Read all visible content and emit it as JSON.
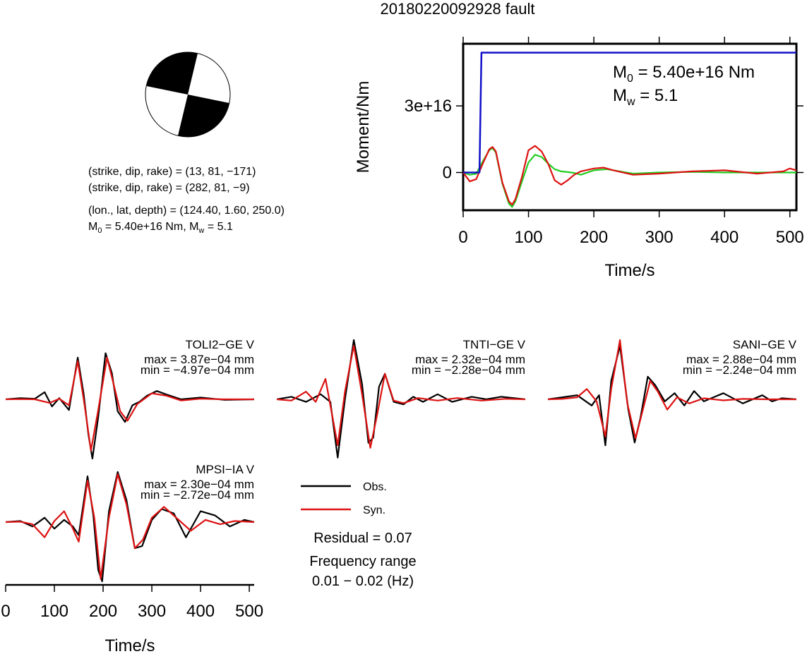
{
  "title": "20180220092928 fault",
  "mechanism": {
    "np1": "(strike, dip, rake) = (13, 81, −171)",
    "np2": "(strike, dip, rake) = (282, 81, −9)",
    "location": "(lon., lat, depth) = (124.40, 1.60, 250.0)",
    "m0_prefix": "M",
    "m0_sub": "0",
    "m0_value": " = 5.40e+16 Nm, M",
    "mw_sub": "w",
    "mw_value": " = 5.1"
  },
  "moment_box": {
    "m0_label": "M",
    "m0_sub": "0",
    "m0_text": " = 5.40e+16 Nm",
    "mw_label": "M",
    "mw_sub": "w",
    "mw_text": " = 5.1"
  },
  "legend": {
    "obs": "Obs.",
    "syn": "Syn.",
    "residual": "Residual = 0.07",
    "freq_title": "Frequency range",
    "freq_value": "0.01 − 0.02 (Hz)"
  },
  "colors": {
    "obs": "#000000",
    "syn": "#dd1111",
    "cumulative": "#1010c8",
    "rate_green": "#22cc22",
    "rate_red": "#dd1111"
  },
  "chart_data": [
    {
      "type": "line",
      "title": "",
      "xlabel": "Time/s",
      "ylabel": "Moment/Nm",
      "xlim": [
        0,
        510
      ],
      "ylim": [
        -1.7e+16,
        5.8e+16
      ],
      "xticks": [
        0,
        100,
        200,
        300,
        400,
        500
      ],
      "xtick_labels": [
        "0",
        "100",
        "200",
        "300",
        "400",
        "500"
      ],
      "yticks": [
        0,
        3e+16
      ],
      "ytick_labels": [
        "0",
        "3e+16"
      ],
      "series": [
        {
          "key": "cumulative",
          "x": [
            0,
            25,
            28,
            510
          ],
          "y": [
            0,
            0,
            5.4e+16,
            5.4e+16
          ]
        },
        {
          "key": "rate_green",
          "x": [
            0,
            10,
            20,
            30,
            40,
            45,
            50,
            60,
            70,
            75,
            80,
            90,
            100,
            110,
            120,
            130,
            140,
            150,
            160,
            170,
            180,
            200,
            220,
            240,
            260,
            300,
            350,
            400,
            450,
            500,
            510
          ],
          "y": [
            0,
            -1000000000000000.0,
            -600000000000000.0,
            5000000000000000.0,
            1e+16,
            1.1e+16,
            9000000000000000.0,
            -5000000000000000.0,
            -1.4e+16,
            -1.55e+16,
            -1.3e+16,
            -4000000000000000.0,
            4500000000000000.0,
            8000000000000000.0,
            7000000000000000.0,
            4000000000000000.0,
            1500000000000000.0,
            500000000000000.0,
            200000000000000.0,
            -200000000000000.0,
            -1000000000000000.0,
            1000000000000000.0,
            1500000000000000.0,
            500000000000000.0,
            -500000000000000.0,
            0.0,
            300000000000000.0,
            0.0,
            0.0,
            0.0,
            0.0
          ]
        },
        {
          "key": "rate_red",
          "x": [
            0,
            10,
            20,
            30,
            40,
            45,
            50,
            60,
            70,
            75,
            80,
            90,
            100,
            110,
            120,
            130,
            140,
            150,
            160,
            170,
            180,
            200,
            215,
            230,
            260,
            300,
            350,
            400,
            450,
            490,
            500,
            510
          ],
          "y": [
            0,
            -4000000000000000.0,
            -3000000000000000.0,
            4000000000000000.0,
            1.05e+16,
            1.15e+16,
            9500000000000000.0,
            -4500000000000000.0,
            -1.3e+16,
            -1.45e+16,
            -1.2e+16,
            -2000000000000000.0,
            1e+16,
            1.2e+16,
            9500000000000000.0,
            4000000000000000.0,
            -3500000000000000.0,
            -5500000000000000.0,
            -3500000000000000.0,
            -1000000000000000.0,
            500000000000000.0,
            1800000000000000.0,
            2200000000000000.0,
            1000000000000000.0,
            -1000000000000000.0,
            -500000000000000.0,
            500000000000000.0,
            1000000000000000.0,
            -500000000000000.0,
            500000000000000.0,
            1800000000000000.0,
            1000000000000000.0
          ]
        }
      ]
    },
    {
      "type": "line",
      "station": "TOLI2−GE V",
      "max": "max = 3.87e−04 mm",
      "min": "min = −4.97e−04 mm",
      "xlim": [
        0,
        510
      ],
      "ylim": [
        -0.000497,
        0.000387
      ],
      "series": [
        {
          "name": "Obs.",
          "x": [
            0,
            30,
            60,
            80,
            95,
            110,
            130,
            148,
            160,
            170,
            178,
            190,
            205,
            218,
            230,
            245,
            260,
            275,
            290,
            310,
            330,
            360,
            400,
            450,
            510
          ],
          "y": [
            0,
            1e-05,
            5e-06,
            6e-05,
            -6e-05,
            1e-05,
            -9e-05,
            0.00035,
            5e-05,
            -0.0003,
            -0.000497,
            -0.00015,
            0.000387,
            0.00022,
            -0.0001,
            -0.00019,
            -5e-05,
            -2e-05,
            3e-05,
            7e-05,
            4e-05,
            0.0,
            1.5e-05,
            -5e-06,
            0.0
          ]
        },
        {
          "name": "Syn.",
          "x": [
            0,
            30,
            60,
            90,
            110,
            130,
            148,
            162,
            175,
            190,
            208,
            222,
            235,
            250,
            270,
            300,
            330,
            360,
            400,
            450,
            510
          ],
          "y": [
            0,
            2e-06,
            0.0,
            -3e-05,
            5e-06,
            -5e-05,
            0.00032,
            -5e-05,
            -0.00043,
            -9e-05,
            0.00035,
            0.00012,
            -0.0001,
            -0.00018,
            -4e-05,
            5e-05,
            3e-05,
            -1e-05,
            5e-06,
            0.0,
            0.0
          ]
        }
      ]
    },
    {
      "type": "line",
      "station": "TNTI−GE V",
      "max": "max = 2.32e−04 mm",
      "min": "min = −2.28e−04 mm",
      "xlim": [
        0,
        510
      ],
      "ylim": [
        -0.000228,
        0.000232
      ],
      "series": [
        {
          "name": "Obs.",
          "x": [
            0,
            30,
            60,
            90,
            110,
            125,
            140,
            158,
            175,
            188,
            198,
            210,
            222,
            240,
            260,
            280,
            300,
            330,
            360,
            400,
            430,
            460,
            510
          ],
          "y": [
            0,
            1e-05,
            -1e-05,
            2e-05,
            -1e-05,
            -0.000228,
            0.0,
            0.000232,
            6e-05,
            -0.00017,
            -0.00015,
            5e-05,
            0.0001,
            -1e-05,
            -2e-05,
            1e-05,
            -1e-05,
            2e-05,
            -1e-05,
            1e-05,
            0.0,
            1e-05,
            0.0
          ]
        },
        {
          "name": "Syn.",
          "x": [
            0,
            30,
            60,
            80,
            100,
            125,
            140,
            158,
            175,
            192,
            205,
            222,
            240,
            260,
            290,
            330,
            370,
            420,
            470,
            510
          ],
          "y": [
            0,
            -5e-06,
            3e-05,
            -1e-05,
            8e-05,
            -0.00018,
            3e-05,
            0.00021,
            2e-05,
            -0.00019,
            -7e-05,
            0.0001,
            -5e-06,
            -1.5e-05,
            5e-06,
            -5e-06,
            5e-06,
            -5e-06,
            2e-06,
            0.0
          ]
        }
      ]
    },
    {
      "type": "line",
      "station": "SANI−GE V",
      "max": "max = 2.88e−04 mm",
      "min": "min = −2.24e−04 mm",
      "xlim": [
        0,
        510
      ],
      "ylim": [
        -0.000224,
        0.000288
      ],
      "series": [
        {
          "name": "Obs.",
          "x": [
            0,
            30,
            60,
            90,
            105,
            118,
            130,
            148,
            165,
            178,
            190,
            205,
            220,
            240,
            260,
            280,
            300,
            320,
            360,
            400,
            440,
            460,
            480,
            510
          ],
          "y": [
            0,
            1e-05,
            2e-05,
            -3e-05,
            2e-05,
            -0.000224,
            9e-05,
            0.00026,
            -5e-05,
            -0.00021,
            -9e-05,
            0.00011,
            7e-05,
            -1e-05,
            3e-05,
            -3e-05,
            4e-05,
            -1e-05,
            3e-05,
            -2e-05,
            2e-05,
            -1e-05,
            5e-06,
            0.0
          ]
        },
        {
          "name": "Syn.",
          "x": [
            0,
            30,
            60,
            80,
            100,
            118,
            130,
            148,
            163,
            180,
            195,
            210,
            225,
            245,
            265,
            290,
            320,
            360,
            400,
            450,
            510
          ],
          "y": [
            0,
            2e-06,
            1e-05,
            5e-05,
            -1e-05,
            -0.00018,
            5e-05,
            0.000288,
            -2e-05,
            -0.00019,
            -5e-05,
            9e-05,
            4e-05,
            -5e-05,
            1e-05,
            -2e-05,
            5e-06,
            -5e-06,
            2e-06,
            0.0,
            0.0
          ]
        }
      ]
    },
    {
      "type": "line",
      "station": "MPSI−IA V",
      "max": "max = 2.30e−04 mm",
      "min": "min = −2.72e−04 mm",
      "xlim": [
        0,
        510
      ],
      "ylim": [
        -0.000272,
        0.00023
      ],
      "series": [
        {
          "name": "Obs.",
          "x": [
            0,
            30,
            55,
            80,
            100,
            120,
            138,
            150,
            168,
            180,
            190,
            198,
            212,
            230,
            248,
            265,
            280,
            300,
            320,
            345,
            370,
            400,
            430,
            460,
            490,
            510
          ],
          "y": [
            0,
            5e-06,
            -2e-05,
            2e-05,
            -3e-05,
            1e-05,
            -2e-05,
            -6e-05,
            0.00021,
            3e-05,
            -0.00022,
            -0.000272,
            5e-05,
            0.00023,
            0.0001,
            -0.00012,
            -0.00011,
            1e-05,
            6e-05,
            4e-05,
            -7e-05,
            5e-05,
            3e-05,
            -2e-05,
            1e-05,
            0.0
          ]
        },
        {
          "name": "Syn.",
          "x": [
            0,
            30,
            55,
            80,
            100,
            120,
            138,
            150,
            168,
            182,
            195,
            212,
            230,
            248,
            265,
            282,
            300,
            325,
            350,
            380,
            410,
            440,
            470,
            510
          ],
          "y": [
            0,
            2e-06,
            -1e-05,
            -7e-05,
            5e-06,
            5e-05,
            -3e-05,
            -9e-05,
            0.00019,
            2e-05,
            -0.00026,
            2e-05,
            0.00022,
            8e-05,
            -0.00012,
            -8e-05,
            2e-05,
            7e-05,
            2e-05,
            -4e-05,
            1e-05,
            -1e-05,
            5e-06,
            0.0
          ]
        }
      ]
    }
  ],
  "waveform_axis": {
    "xlabel": "Time/s",
    "xticks": [
      0,
      100,
      200,
      300,
      400,
      500
    ],
    "xtick_labels": [
      "0",
      "100",
      "200",
      "300",
      "400",
      "500"
    ]
  }
}
